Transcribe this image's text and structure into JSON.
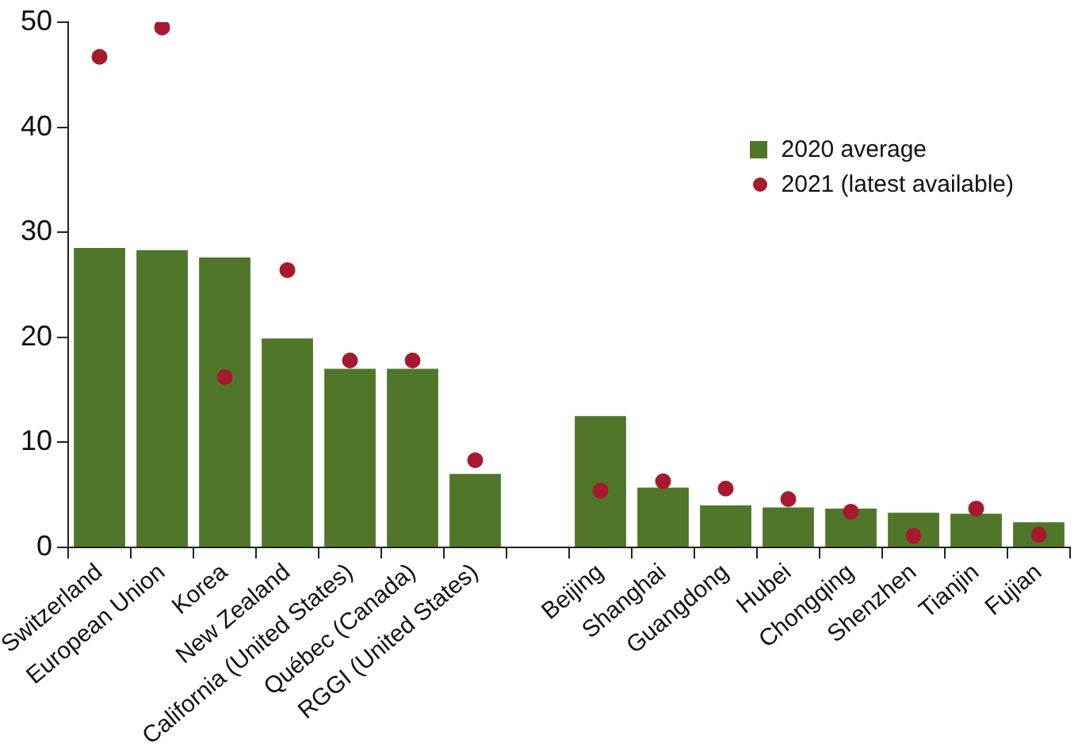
{
  "chart_data": {
    "type": "bar",
    "categories": [
      "Switzerland",
      "European Union",
      "Korea",
      "New Zealand",
      "California (United States)",
      "Québec (Canada)",
      "RGGI (United States)",
      null,
      "Beijing",
      "Shanghai",
      "Guangdong",
      "Hubei",
      "Chongqing",
      "Shenzhen",
      "Tianjin",
      "Fujian"
    ],
    "series": [
      {
        "name": "2020 average",
        "color": "#50762a",
        "values": [
          28.5,
          28.3,
          27.6,
          19.9,
          17.0,
          17.0,
          7.0,
          null,
          12.5,
          5.7,
          4.0,
          3.8,
          3.7,
          3.3,
          3.2,
          2.4
        ]
      },
      {
        "name": "2021 (latest available)",
        "type": "scatter",
        "color": "#a8182e",
        "values": [
          46.7,
          49.5,
          16.2,
          26.4,
          17.8,
          17.8,
          8.3,
          null,
          5.4,
          6.3,
          5.6,
          4.6,
          3.4,
          1.1,
          3.7,
          1.2
        ]
      }
    ],
    "ylim": [
      0,
      50
    ],
    "yticks": [
      0,
      10,
      20,
      30,
      40,
      50
    ],
    "grid": false,
    "legend": "top right",
    "marker": "circle"
  }
}
